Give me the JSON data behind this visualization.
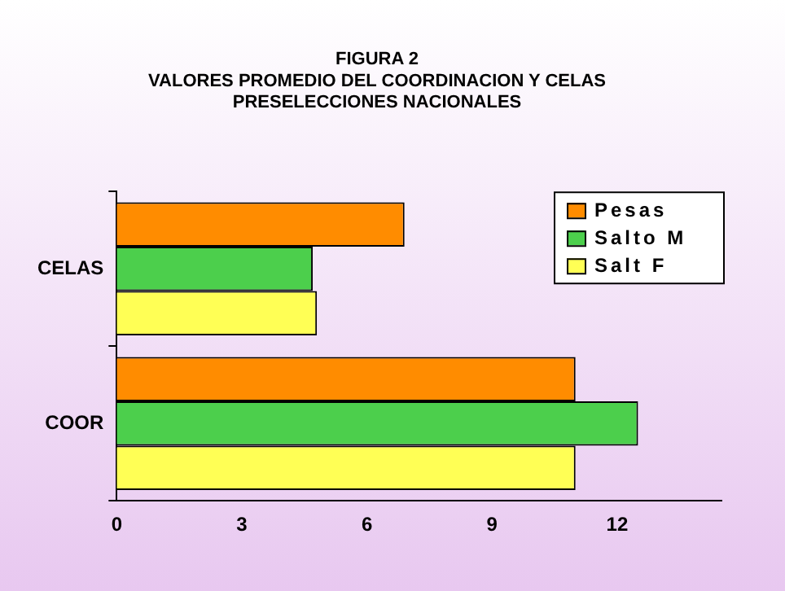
{
  "chart_data": {
    "type": "bar",
    "orientation": "horizontal",
    "title": "FIGURA 2",
    "subtitle": "VALORES PROMEDIO DEL COORDINACION Y CELAS\nPRESELECCIONES NACIONALES",
    "categories": [
      "CELAS",
      "COOR"
    ],
    "series": [
      {
        "name": "Pesas",
        "color": "#ff8c00",
        "values": [
          6.9,
          11
        ]
      },
      {
        "name": "Salto M",
        "color": "#4ccf4c",
        "values": [
          4.7,
          12.5
        ]
      },
      {
        "name": "Salt F",
        "color": "#ffff55",
        "values": [
          4.8,
          11
        ]
      }
    ],
    "xlim": [
      0,
      14.5
    ],
    "xticks": [
      0,
      3,
      6,
      9,
      12
    ],
    "grid": false,
    "legend": "top right"
  }
}
